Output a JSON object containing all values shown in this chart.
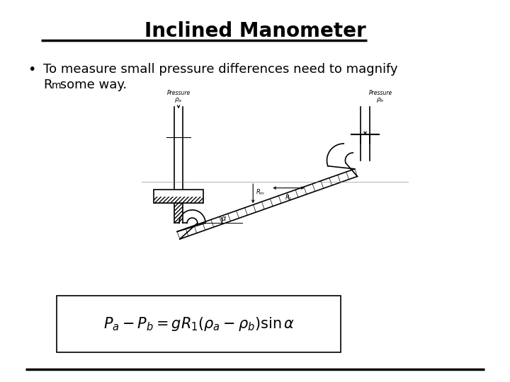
{
  "title": "Inclined Manometer",
  "bullet_line1": "To measure small pressure differences need to magnify",
  "bullet_line2": " some way.",
  "bg_color": "#ffffff",
  "title_fontsize": 20,
  "bullet_fontsize": 13,
  "equation": "$P_a - P_b = gR_1(\\rho_a - \\rho_b)\\sin\\alpha$",
  "equation_fontsize": 15
}
